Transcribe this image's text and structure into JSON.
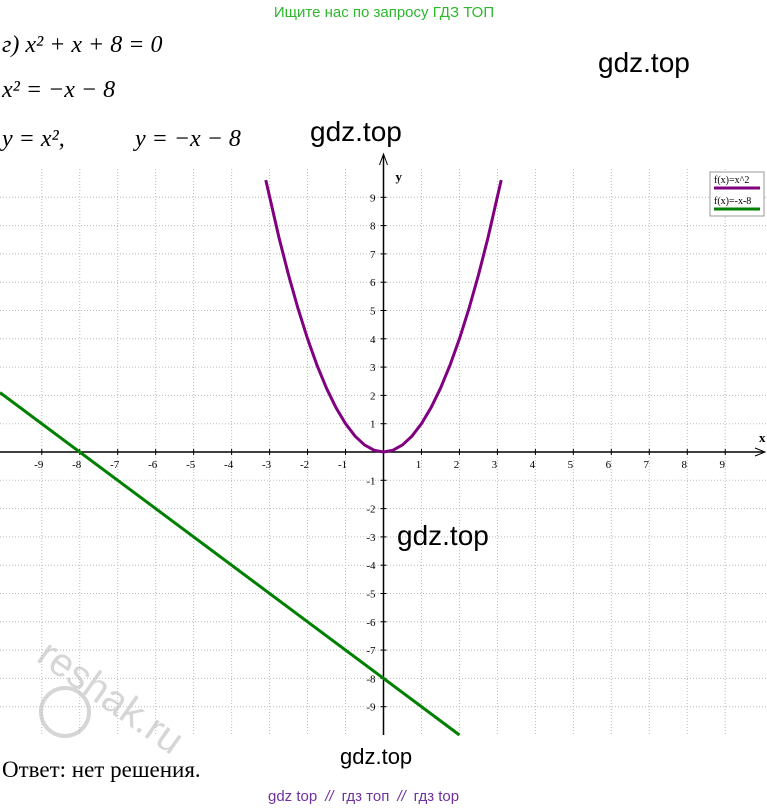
{
  "header": {
    "search_hint": "Ищите нас по запросу ГДЗ ТОП"
  },
  "equations": [
    "г) x² + x + 8 = 0",
    "x² = −x − 8",
    "y = x²,",
    "y = −x − 8"
  ],
  "watermarks": [
    "gdz.top",
    "gdz.top",
    "gdz.top",
    "gdz.top",
    "reshak.ru"
  ],
  "chart_data": {
    "type": "line",
    "xlabel": "x",
    "ylabel": "y",
    "xlim": [
      -10.1,
      10.1
    ],
    "ylim": [
      -10,
      10
    ],
    "xticks": [
      -9,
      -8,
      -7,
      -6,
      -5,
      -4,
      -3,
      -2,
      -1,
      1,
      2,
      3,
      4,
      5,
      6,
      7,
      8,
      9
    ],
    "yticks": [
      -9,
      -8,
      -7,
      -6,
      -5,
      -4,
      -3,
      -2,
      -1,
      1,
      2,
      3,
      4,
      5,
      6,
      7,
      8,
      9
    ],
    "grid": true,
    "legend": "top-right",
    "series": [
      {
        "name": "f(x)=x^2",
        "color": "#800080",
        "x": [
          -3.1,
          -2.75,
          -2.5,
          -2.25,
          -2,
          -1.75,
          -1.5,
          -1.25,
          -1,
          -0.75,
          -0.5,
          -0.25,
          0,
          0.25,
          0.5,
          0.75,
          1,
          1.25,
          1.5,
          1.75,
          2,
          2.25,
          2.5,
          2.75,
          3.1
        ],
        "values": [
          9.61,
          7.5625,
          6.25,
          5.0625,
          4,
          3.0625,
          2.25,
          1.5625,
          1,
          0.5625,
          0.25,
          0.0625,
          0,
          0.0625,
          0.25,
          0.5625,
          1,
          1.5625,
          2.25,
          3.0625,
          4,
          5.0625,
          6.25,
          7.5625,
          9.61
        ]
      },
      {
        "name": "f(x)=-x-8",
        "color": "#008000",
        "x": [
          -10.1,
          2
        ],
        "values": [
          2.1,
          -10
        ]
      }
    ]
  },
  "answer": "Ответ: нет решения.",
  "footer": {
    "links": [
      "gdz top",
      "гдз топ",
      "гдз top"
    ],
    "separator": "//"
  }
}
